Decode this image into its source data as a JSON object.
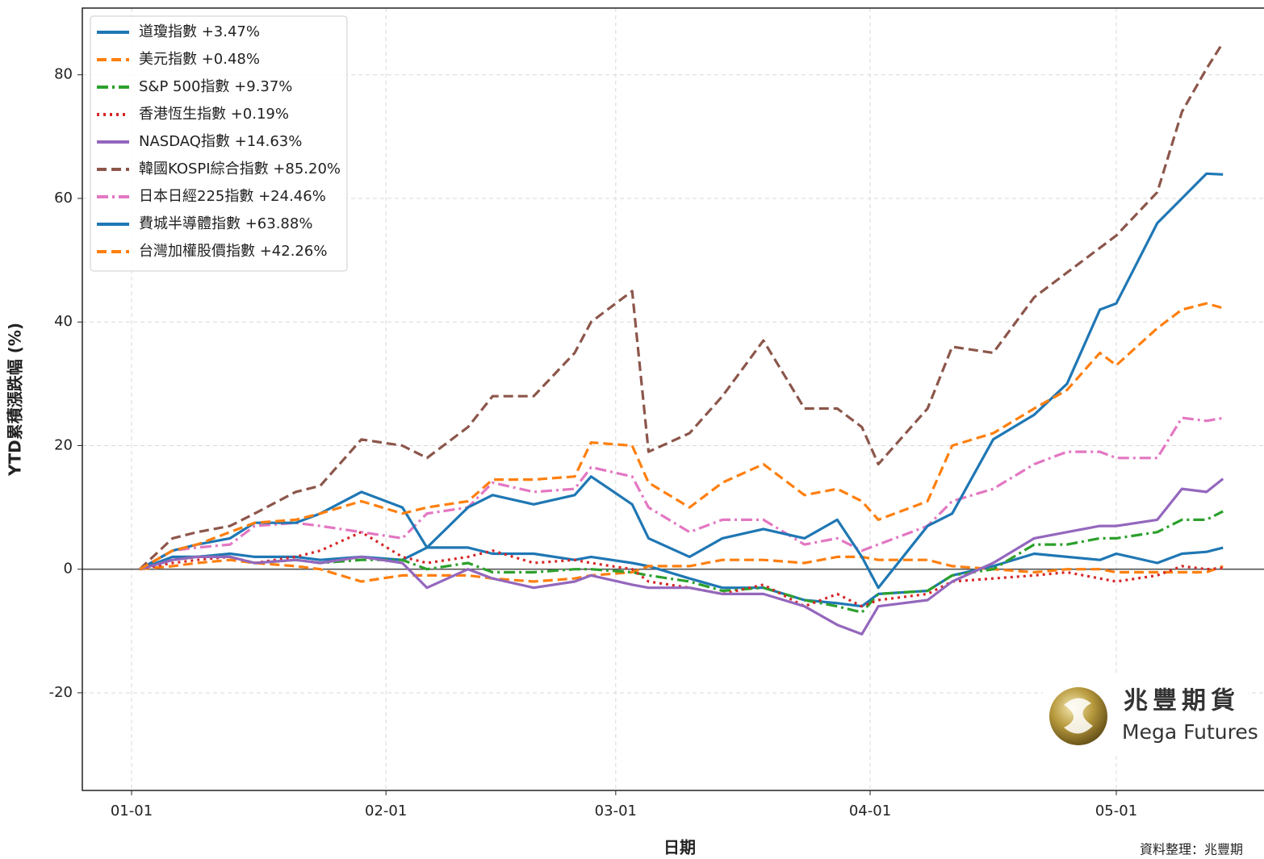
{
  "chart_data": {
    "type": "line",
    "y_label": "YTD累積漲跌幅 (%)",
    "x_label": "日期",
    "source_note": "資料整理：兆豐期",
    "logo": {
      "name": "兆豐期貨",
      "english": "Mega Futures"
    },
    "x": [
      "01-02",
      "01-06",
      "01-09",
      "01-13",
      "01-16",
      "01-21",
      "01-24",
      "01-29",
      "02-03",
      "02-06",
      "02-11",
      "02-14",
      "02-19",
      "02-24",
      "02-26",
      "03-03",
      "03-05",
      "03-10",
      "03-14",
      "03-19",
      "03-24",
      "03-28",
      "03-31",
      "04-02",
      "04-08",
      "04-11",
      "04-16",
      "04-21",
      "04-25",
      "04-29",
      "05-01",
      "05-06",
      "05-09",
      "05-12",
      "05-14"
    ],
    "xlim": [
      "12-26",
      "05-19"
    ],
    "xticks": [
      "01-01",
      "02-01",
      "03-01",
      "04-01",
      "05-01"
    ],
    "ylim": [
      -35.8,
      90.8
    ],
    "yticks": [
      -20,
      0,
      20,
      40,
      60,
      80
    ],
    "hline": 0,
    "grid": true,
    "legend": "upper left",
    "series": [
      {
        "name": "道瓊指數 +3.47%",
        "color": "#1f77b4",
        "dash": "solid",
        "values": [
          0,
          2,
          2,
          2.5,
          2,
          2,
          1.5,
          2,
          1.5,
          3.5,
          3.5,
          2.5,
          2.5,
          1.5,
          2,
          1,
          0.5,
          -1.5,
          -3,
          -3,
          -5,
          -5.5,
          -6,
          -4,
          -3.5,
          -1,
          0.5,
          2.5,
          2,
          1.5,
          2.5,
          1,
          2.5,
          2.8,
          3.47
        ]
      },
      {
        "name": "美元指數 +0.48%",
        "color": "#ff7f0e",
        "dash": "dashed",
        "values": [
          0,
          0.5,
          1,
          1.5,
          1,
          0.5,
          0,
          -2,
          -1,
          -1,
          -1,
          -1.5,
          -2,
          -1.5,
          -1,
          -0.5,
          0.5,
          0.5,
          1.5,
          1.5,
          1,
          2,
          2,
          1.5,
          1.5,
          0.5,
          0,
          -0.5,
          0,
          0,
          -0.5,
          -0.5,
          -0.5,
          -0.5,
          0.48
        ]
      },
      {
        "name": "S&P 500指數 +9.37%",
        "color": "#2ca02c",
        "dash": "dashdot",
        "values": [
          0,
          1.5,
          2,
          2,
          1,
          1.5,
          1,
          1.5,
          1.5,
          0,
          1,
          -0.5,
          -0.5,
          0,
          0,
          -0.5,
          -1,
          -2,
          -3.5,
          -3,
          -5,
          -6,
          -7,
          -4,
          -3.5,
          -1,
          0,
          4,
          4,
          5,
          5,
          6,
          8,
          8,
          9.37
        ]
      },
      {
        "name": "香港恆生指數 +0.19%",
        "color": "#d62728",
        "dash": "dotted",
        "values": [
          0,
          1,
          1.5,
          2,
          1,
          2,
          3,
          6,
          2,
          1,
          2,
          3,
          1,
          1.5,
          1,
          0,
          -2,
          -3,
          -4,
          -2.5,
          -6,
          -4,
          -6,
          -5,
          -4,
          -2,
          -1.5,
          -1,
          -0.5,
          -1.5,
          -2,
          -1,
          0.5,
          0,
          0.19
        ]
      },
      {
        "name": "NASDAQ指數 +14.63%",
        "color": "#9467bd",
        "dash": "solid",
        "values": [
          0,
          1.5,
          2,
          2,
          1,
          1.5,
          1,
          2,
          1,
          -3,
          0,
          -1.5,
          -3,
          -2,
          -1,
          -2.5,
          -3,
          -3,
          -4,
          -4,
          -6,
          -9,
          -10.5,
          -6,
          -5,
          -2,
          1,
          5,
          6,
          7,
          7,
          8,
          13,
          12.5,
          14.63
        ]
      },
      {
        "name": "韓國KOSPI綜合指數 +85.20%",
        "color": "#8c564b",
        "dash": "dashed",
        "values": [
          0,
          5,
          6,
          7,
          9,
          12.5,
          13.5,
          21,
          20,
          18,
          23,
          28,
          28,
          35,
          40,
          45,
          19,
          22,
          28,
          37,
          26,
          26,
          23,
          17,
          26,
          36,
          35,
          44,
          48,
          52,
          54,
          61,
          74,
          81,
          85.2
        ]
      },
      {
        "name": "日本日經225指數 +24.46%",
        "color": "#e377c2",
        "dash": "dashdot",
        "values": [
          0,
          3,
          3.5,
          4,
          7,
          7.5,
          7,
          6,
          5,
          9,
          10,
          14,
          12.5,
          13,
          16.5,
          15,
          10,
          6,
          8,
          8,
          4,
          5,
          3,
          4,
          7,
          11,
          13,
          17,
          19,
          19,
          18,
          18,
          24.5,
          24,
          24.46
        ]
      },
      {
        "name": "費城半導體指數 +63.88%",
        "color": "#1f77b4",
        "dash": "solid",
        "values": [
          0,
          3,
          4,
          5,
          7.5,
          7.5,
          9,
          12.5,
          10,
          3.5,
          10,
          12,
          10.5,
          12,
          15,
          10.5,
          5,
          2,
          5,
          6.5,
          5,
          8,
          2,
          -3,
          7,
          9,
          21,
          25,
          30,
          42,
          43,
          56,
          60,
          64,
          63.88
        ]
      },
      {
        "name": "台灣加權股價指數 +42.26%",
        "color": "#ff7f0e",
        "dash": "dashed",
        "values": [
          0,
          3,
          4,
          6,
          7.5,
          8,
          9,
          11,
          9,
          10,
          11,
          14.5,
          14.5,
          15,
          20.5,
          20,
          14,
          10,
          14,
          17,
          12,
          13,
          11,
          8,
          11,
          20,
          22,
          26,
          29,
          35,
          33,
          39,
          42,
          43,
          42.26
        ]
      }
    ]
  }
}
